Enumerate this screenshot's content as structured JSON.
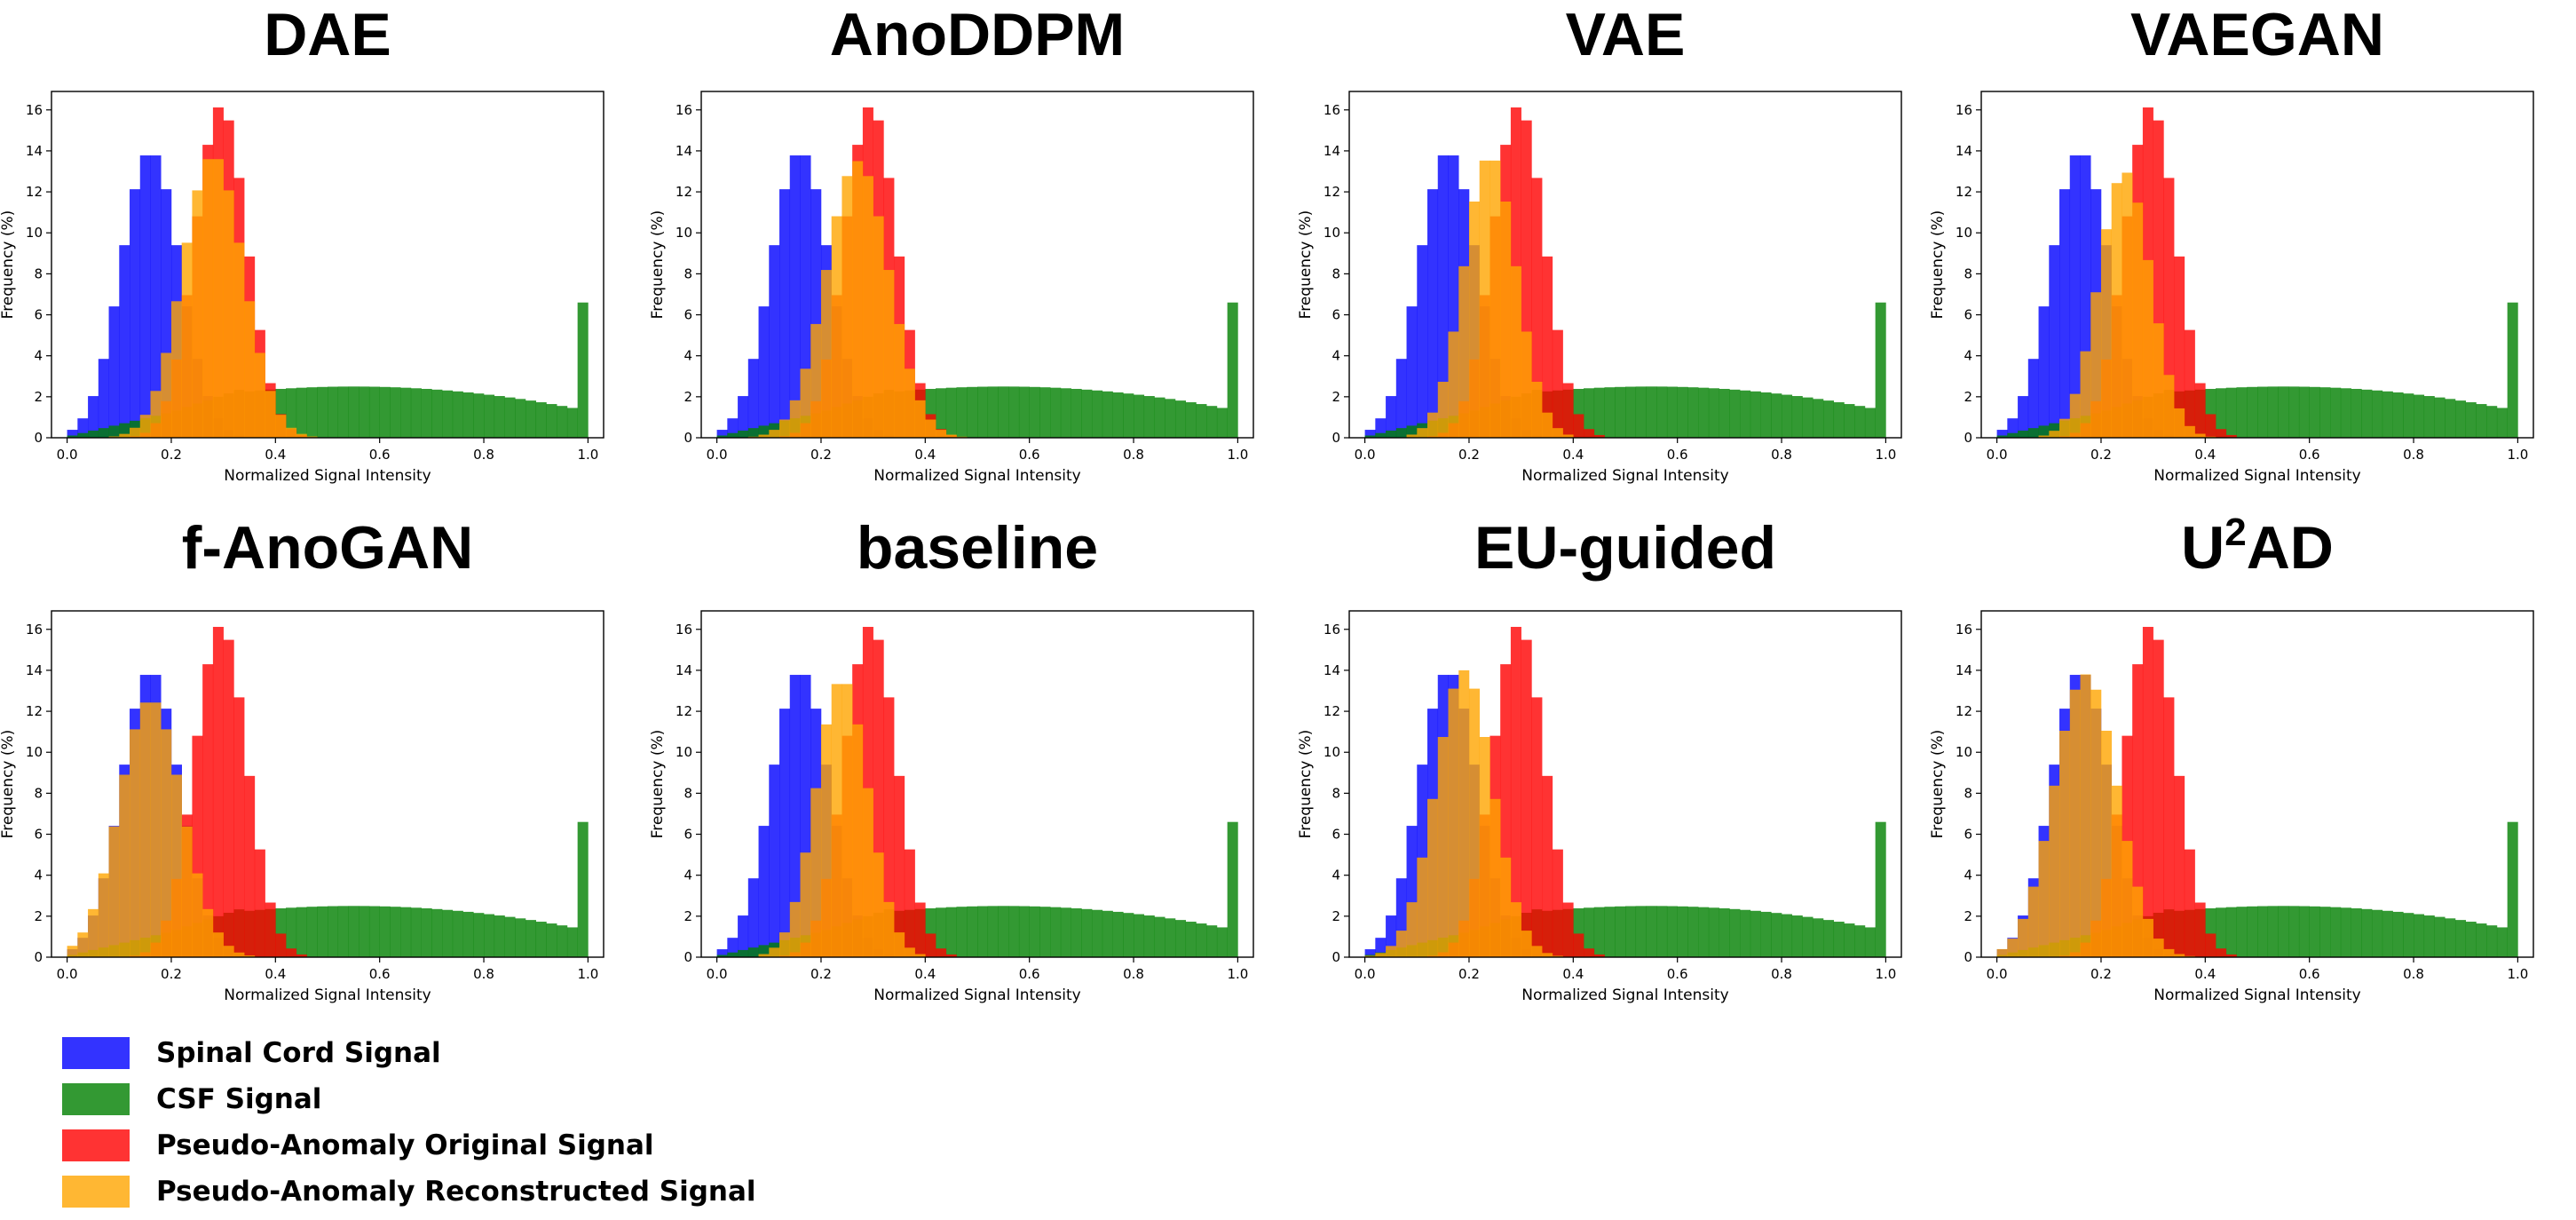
{
  "chart_data": {
    "type": "bar",
    "xlabel": "Normalized Signal Intensity",
    "ylabel": "Frequency (%)",
    "xlim": [
      -0.03,
      1.03
    ],
    "ylim": [
      0,
      16.9
    ],
    "xticks": [
      0.0,
      0.2,
      0.4,
      0.6,
      0.8,
      1.0
    ],
    "yticks": [
      0,
      2,
      4,
      6,
      8,
      10,
      12,
      14,
      16
    ],
    "bin_width": 0.02,
    "legend": [
      {
        "key": "cord",
        "label": "Spinal Cord Signal",
        "color": "#0000ff"
      },
      {
        "key": "csf",
        "label": "CSF Signal",
        "color": "#008000"
      },
      {
        "key": "orig",
        "label": "Pseudo-Anomaly Original Signal",
        "color": "#ff0000"
      },
      {
        "key": "recon",
        "label": "Pseudo-Anomaly Reconstructed Signal",
        "color": "#ffa500"
      }
    ],
    "shared_series": {
      "cord": {
        "center": 0.16,
        "sd": 0.056,
        "peak": 14.0
      },
      "orig": {
        "center": 0.295,
        "sd": 0.05,
        "peak": 16.2
      },
      "csf": {
        "plateau": 2.5,
        "mode": 0.55,
        "end_spike": 6.6
      }
    },
    "panels": [
      {
        "title": "DAE",
        "title_sup": "",
        "recon": {
          "center": 0.28,
          "sd": 0.058,
          "peak": 13.8
        }
      },
      {
        "title": "AnoDDPM",
        "title_sup": "",
        "recon": {
          "center": 0.27,
          "sd": 0.06,
          "peak": 13.5
        }
      },
      {
        "title": "VAE",
        "title_sup": "",
        "recon": {
          "center": 0.24,
          "sd": 0.05,
          "peak": 13.8
        }
      },
      {
        "title": "VAEGAN",
        "title_sup": "",
        "recon": {
          "center": 0.245,
          "sd": 0.05,
          "peak": 13.0
        }
      },
      {
        "title": "f-AnoGAN",
        "title_sup": "",
        "recon": {
          "center": 0.16,
          "sd": 0.06,
          "peak": 12.6
        }
      },
      {
        "title": "baseline",
        "title_sup": "",
        "recon": {
          "center": 0.24,
          "sd": 0.05,
          "peak": 13.6
        }
      },
      {
        "title": "EU-guided",
        "title_sup": "",
        "recon": {
          "center": 0.19,
          "sd": 0.055,
          "peak": 14.0
        }
      },
      {
        "title": "U",
        "title_sup": "2",
        "title_suffix": "AD",
        "recon": {
          "center": 0.17,
          "sd": 0.06,
          "peak": 13.8
        }
      }
    ]
  }
}
